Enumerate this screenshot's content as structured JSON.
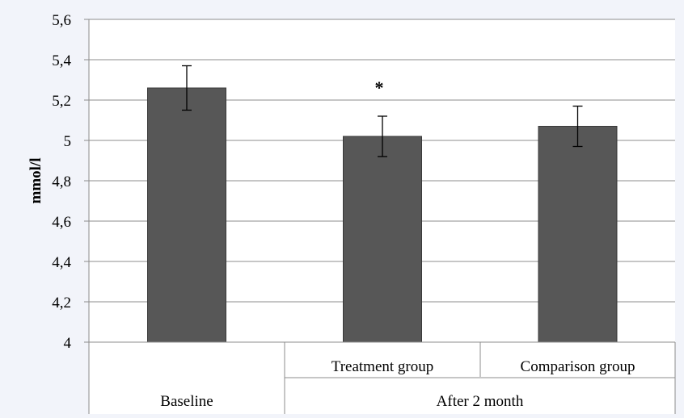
{
  "chart_data": {
    "type": "bar",
    "ylabel": "mmol/l",
    "ylim": [
      4,
      5.6
    ],
    "y_tick_labels": [
      "4",
      "4,2",
      "4,4",
      "4,6",
      "4,8",
      "5",
      "5,2",
      "5,4",
      "5,6"
    ],
    "grid": true,
    "categories": [
      "Baseline",
      "Treatment group",
      "Comparison group"
    ],
    "group_labels": [
      "After 2 month"
    ],
    "values": [
      5.26,
      5.02,
      5.07
    ],
    "error_low": [
      5.15,
      4.92,
      4.97
    ],
    "error_high": [
      5.37,
      5.12,
      5.17
    ],
    "annotations": [
      {
        "category": "Treatment group",
        "text": "*"
      }
    ],
    "colors": {
      "bar": "#575757",
      "background": "#f2f4fa",
      "plot_area": "#ffffff"
    }
  }
}
